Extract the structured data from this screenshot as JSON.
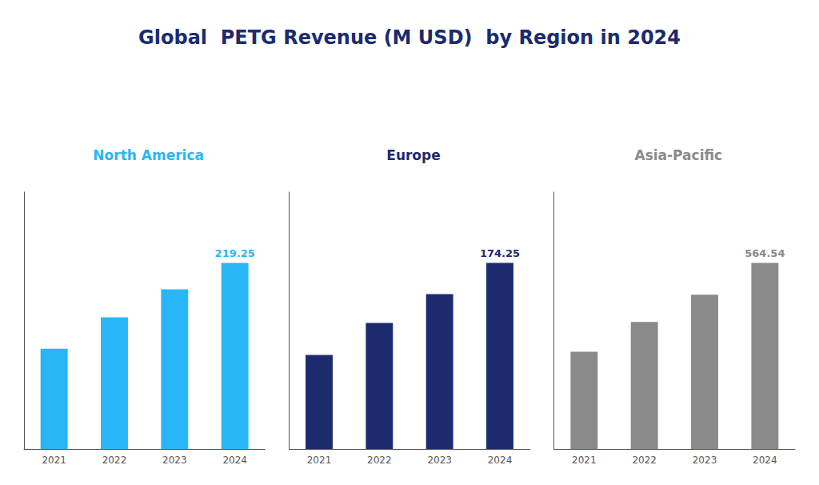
{
  "title": "Global  PETG Revenue (M USD)  by Region in 2024",
  "chart_data": [
    {
      "type": "bar",
      "title": "North America",
      "categories": [
        "2021",
        "2022",
        "2023",
        "2024"
      ],
      "values": [
        118,
        155,
        188,
        219.25
      ],
      "value_labels": [
        null,
        null,
        null,
        "219.25"
      ],
      "color": "#29b6f6",
      "ylim": [
        0,
        302.565
      ],
      "tick_labels": "x",
      "grid": false
    },
    {
      "type": "bar",
      "title": "Europe",
      "categories": [
        "2021",
        "2022",
        "2023",
        "2024"
      ],
      "values": [
        88,
        118,
        145,
        174.25
      ],
      "value_labels": [
        null,
        null,
        null,
        "174.25"
      ],
      "color": "#1c2b6e",
      "ylim": [
        0,
        240.465
      ],
      "tick_labels": "x",
      "grid": false
    },
    {
      "type": "bar",
      "title": "Asia-Pacific",
      "categories": [
        "2021",
        "2022",
        "2023",
        "2024"
      ],
      "values": [
        295,
        385,
        468,
        564.54
      ],
      "value_labels": [
        null,
        null,
        null,
        "564.54"
      ],
      "color": "#8a8a8a",
      "ylim": [
        0,
        779.0652
      ],
      "tick_labels": "x",
      "grid": false
    }
  ]
}
